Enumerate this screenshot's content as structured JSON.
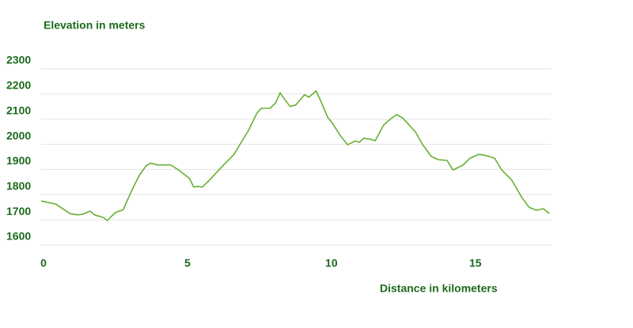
{
  "chart_data": {
    "type": "line",
    "y_label": "Elevation in meters",
    "x_label": "Distance in kilometers",
    "xlim": [
      0,
      17.7
    ],
    "xticks": [
      0,
      5,
      10,
      15
    ],
    "ylim": [
      1600,
      2300
    ],
    "yticks": [
      1600,
      1700,
      1800,
      1900,
      2000,
      2100,
      2200,
      2300
    ],
    "grid": true,
    "series": [
      {
        "color": "#66b032",
        "x": [
          0,
          0.5,
          1.0,
          1.25,
          1.45,
          1.7,
          1.85,
          2.15,
          2.3,
          2.4,
          2.6,
          2.85,
          3.1,
          3.4,
          3.65,
          3.8,
          4.05,
          4.35,
          4.5,
          4.75,
          5.15,
          5.3,
          5.45,
          5.6,
          5.85,
          6.25,
          6.7,
          6.95,
          7.2,
          7.5,
          7.65,
          7.95,
          8.15,
          8.3,
          8.45,
          8.65,
          8.85,
          9.15,
          9.3,
          9.4,
          9.55,
          9.7,
          9.95,
          10.1,
          10.4,
          10.65,
          10.9,
          11.05,
          11.2,
          11.45,
          11.6,
          11.9,
          12.15,
          12.35,
          12.55,
          12.7,
          13.0,
          13.25,
          13.55,
          13.8,
          14.1,
          14.3,
          14.65,
          14.9,
          15.2,
          15.4,
          15.75,
          16.0,
          16.35,
          16.7,
          16.95,
          17.2,
          17.45,
          17.65
        ],
        "values": [
          1775,
          1763,
          1725,
          1720,
          1722,
          1735,
          1720,
          1710,
          1697,
          1710,
          1730,
          1740,
          1805,
          1875,
          1915,
          1925,
          1918,
          1918,
          1918,
          1900,
          1865,
          1830,
          1833,
          1830,
          1858,
          1908,
          1960,
          2008,
          2055,
          2125,
          2143,
          2143,
          2165,
          2205,
          2180,
          2150,
          2157,
          2197,
          2187,
          2197,
          2212,
          2175,
          2108,
          2087,
          2033,
          1998,
          2013,
          2008,
          2024,
          2020,
          2014,
          2077,
          2102,
          2118,
          2105,
          2087,
          2049,
          1999,
          1952,
          1939,
          1936,
          1898,
          1917,
          1945,
          1960,
          1957,
          1945,
          1898,
          1857,
          1788,
          1750,
          1738,
          1744,
          1725
        ]
      }
    ]
  }
}
